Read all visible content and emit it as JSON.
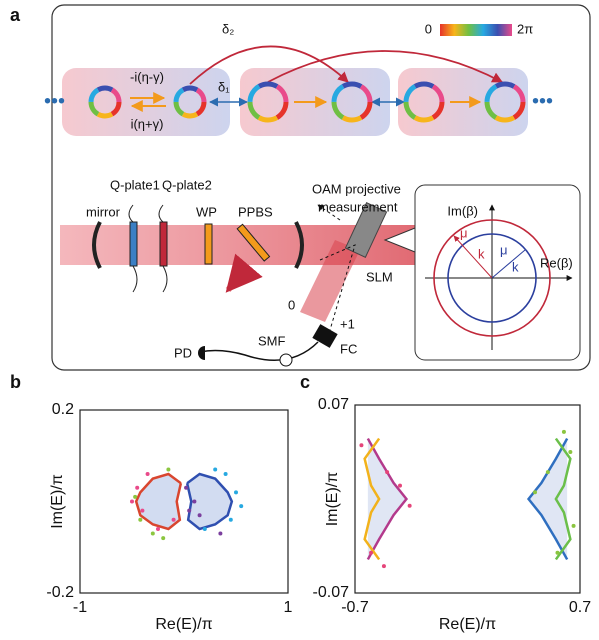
{
  "panel_a": {
    "label": "a",
    "colorbar": {
      "min_label": "0",
      "max_label": "2π"
    },
    "coupling": {
      "delta2": "δ₂",
      "delta1": "δ₁",
      "forward": "-i(η-γ)",
      "backward": "i(η+γ)"
    },
    "setup": {
      "qplate1": "Q-plate1",
      "qplate2": "Q-plate2",
      "mirror": "mirror",
      "wp": "WP",
      "ppbs": "PPBS",
      "oam": [
        "OAM projective",
        "measurement"
      ],
      "slm": "SLM",
      "order0": "0",
      "order1": "+1",
      "fc": "FC",
      "smf": "SMF",
      "pd": "PD"
    },
    "inset": {
      "im": "Im(β)",
      "re": "Re(β)",
      "mu_outer": "μ",
      "mu_inner": "μ",
      "k_outer": "k",
      "k_inner": "k"
    }
  },
  "chart_data": [
    {
      "type": "scatter",
      "panel_label": "b",
      "xlabel": "Re(E)/π",
      "ylabel": "Im(E)/π",
      "xlim": [
        -1,
        1
      ],
      "ylim": [
        -0.2,
        0.2
      ],
      "xticks": [
        -1,
        1
      ],
      "yticks": [
        -0.2,
        0.2
      ],
      "series": [
        {
          "style": "line",
          "color": "#d9462f",
          "fill": "#cdd8ef",
          "x": [
            -0.03,
            -0.15,
            -0.3,
            -0.42,
            -0.46,
            -0.42,
            -0.3,
            -0.15,
            -0.04,
            -0.07,
            -0.03
          ],
          "y": [
            0.04,
            0.06,
            0.05,
            0.02,
            0.0,
            -0.03,
            -0.05,
            -0.06,
            -0.04,
            0.0,
            0.04
          ]
        },
        {
          "style": "line",
          "color": "#2f4fb0",
          "fill": "#cdd8ef",
          "x": [
            0.03,
            0.15,
            0.3,
            0.42,
            0.46,
            0.42,
            0.3,
            0.15,
            0.04,
            0.07,
            0.03
          ],
          "y": [
            0.04,
            0.06,
            0.05,
            0.02,
            0.0,
            -0.03,
            -0.05,
            -0.06,
            -0.04,
            0.0,
            0.04
          ]
        },
        {
          "style": "points",
          "color": "#e94a8a",
          "x": [
            -0.45,
            -0.4,
            -0.5,
            -0.35,
            -0.25,
            -0.1
          ],
          "y": [
            0.03,
            -0.02,
            0.0,
            0.06,
            -0.06,
            -0.04
          ]
        },
        {
          "style": "points",
          "color": "#8cc63f",
          "x": [
            -0.3,
            -0.2,
            -0.42,
            -0.15,
            -0.47
          ],
          "y": [
            -0.07,
            -0.08,
            -0.04,
            0.07,
            0.01
          ]
        },
        {
          "style": "points",
          "color": "#27a9e1",
          "x": [
            0.4,
            0.5,
            0.3,
            0.45,
            0.2,
            0.55
          ],
          "y": [
            0.06,
            0.02,
            0.07,
            -0.04,
            -0.06,
            -0.01
          ]
        },
        {
          "style": "points",
          "color": "#7b3f9e",
          "x": [
            0.05,
            0.1,
            0.15,
            0.02,
            0.35
          ],
          "y": [
            -0.02,
            0.0,
            -0.03,
            0.03,
            -0.07
          ]
        }
      ]
    },
    {
      "type": "scatter",
      "panel_label": "c",
      "xlabel": "Re(E)/π",
      "ylabel": "Im(E)/π",
      "xlim": [
        -0.7,
        0.7
      ],
      "ylim": [
        -0.07,
        0.07
      ],
      "xticks": [
        -0.7,
        0.7
      ],
      "yticks": [
        -0.07,
        0.07
      ],
      "series": [
        {
          "style": "line",
          "color": "#b33a8c",
          "fill": "#dde3f3",
          "x": [
            -0.62,
            -0.55,
            -0.46,
            -0.38,
            -0.46,
            -0.55,
            -0.62
          ],
          "y": [
            0.045,
            0.03,
            0.012,
            0.0,
            -0.012,
            -0.03,
            -0.045
          ]
        },
        {
          "style": "line",
          "color": "#f2b21b",
          "x": [
            -0.55,
            -0.64,
            -0.6,
            -0.55,
            -0.6,
            -0.64,
            -0.55
          ],
          "y": [
            0.045,
            0.03,
            0.01,
            0.0,
            -0.01,
            -0.03,
            -0.045
          ]
        },
        {
          "style": "line",
          "color": "#2f6fc0",
          "fill": "#dde3f3",
          "x": [
            0.62,
            0.55,
            0.46,
            0.38,
            0.46,
            0.55,
            0.62
          ],
          "y": [
            0.045,
            0.03,
            0.012,
            0.0,
            -0.012,
            -0.03,
            -0.045
          ]
        },
        {
          "style": "line",
          "color": "#6bbf4a",
          "x": [
            0.55,
            0.64,
            0.6,
            0.55,
            0.6,
            0.64,
            0.55
          ],
          "y": [
            0.045,
            0.03,
            0.01,
            0.0,
            -0.01,
            -0.03,
            -0.045
          ]
        },
        {
          "style": "points",
          "color": "#e5457a",
          "x": [
            -0.66,
            -0.5,
            -0.42,
            -0.6,
            -0.36,
            -0.52
          ],
          "y": [
            0.04,
            0.02,
            0.01,
            -0.04,
            -0.005,
            -0.05
          ]
        },
        {
          "style": "points",
          "color": "#8bc53f",
          "x": [
            0.6,
            0.5,
            0.66,
            0.42,
            0.56,
            0.64
          ],
          "y": [
            0.05,
            0.02,
            -0.02,
            0.005,
            -0.04,
            0.035
          ]
        }
      ]
    }
  ]
}
